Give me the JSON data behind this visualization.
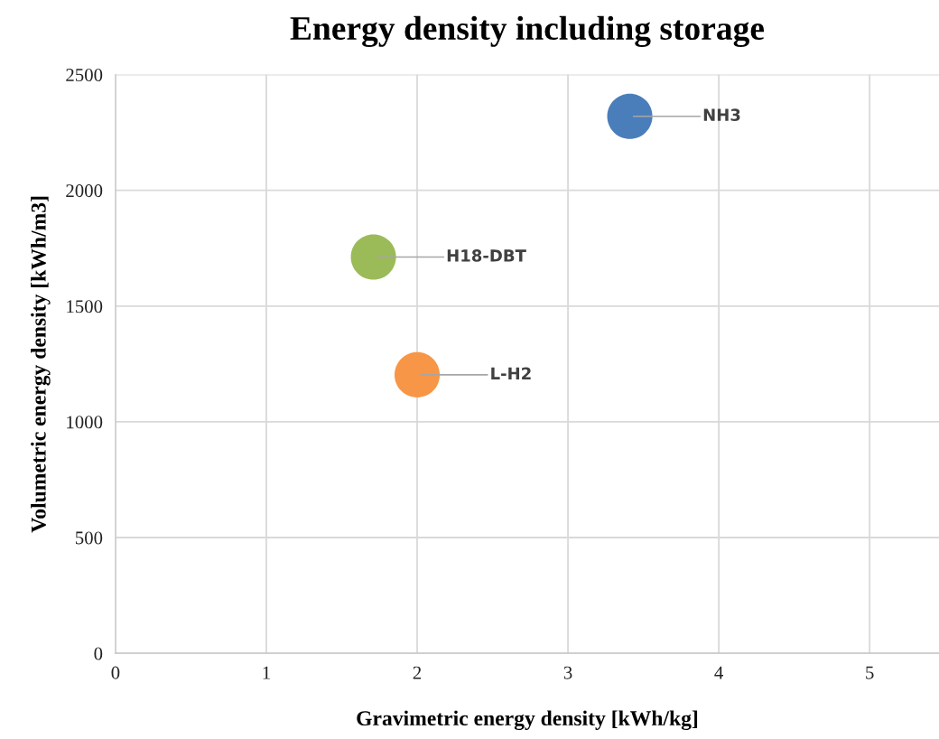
{
  "chart_data": {
    "type": "scatter",
    "title": "Energy density including storage",
    "xlabel": "Gravimetric energy density [kWh/kg]",
    "ylabel": "Volumetric energy density [kWh/m3]",
    "series": [
      {
        "name": "NH3",
        "color": "#4a7ebb",
        "x": [
          3.41
        ],
        "values": [
          2320
        ]
      },
      {
        "name": "H18-DBT",
        "color": "#9bbb59",
        "x": [
          1.71
        ],
        "values": [
          1712
        ]
      },
      {
        "name": "L-H2",
        "color": "#f79646",
        "x": [
          2.0
        ],
        "values": [
          1203
        ]
      }
    ],
    "xlim": [
      0,
      5.46
    ],
    "xticks": [
      0,
      1,
      2,
      3,
      4,
      5
    ],
    "ylim": [
      0,
      2500
    ],
    "yticks": [
      0,
      500,
      1000,
      1500,
      2000,
      2500
    ],
    "grid": true,
    "legend": false,
    "marker": "circle"
  }
}
